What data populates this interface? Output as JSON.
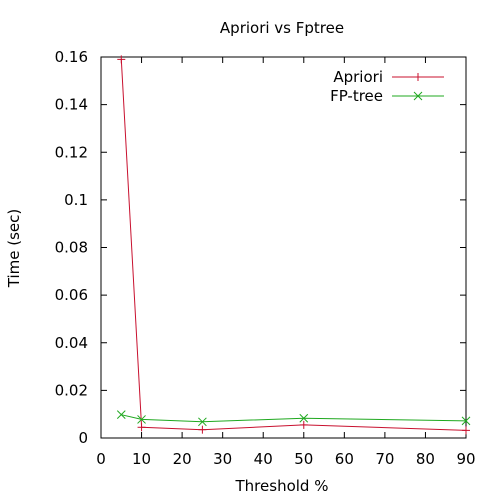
{
  "chart_data": {
    "type": "line",
    "title": "Apriori vs Fptree",
    "xlabel": "Threshold %",
    "ylabel": "Time (sec)",
    "xlim": [
      0,
      90
    ],
    "ylim": [
      0,
      0.16
    ],
    "xticks": [
      0,
      10,
      20,
      30,
      40,
      50,
      60,
      70,
      80,
      90
    ],
    "yticks": [
      0,
      0.02,
      0.04,
      0.06,
      0.08,
      0.1,
      0.12,
      0.14,
      0.16
    ],
    "xtick_labels": [
      "0",
      "10",
      "20",
      "30",
      "40",
      "50",
      "60",
      "70",
      "80",
      "90"
    ],
    "ytick_labels": [
      "0",
      "0.02",
      "0.04",
      "0.06",
      "0.08",
      "0.1",
      "0.12",
      "0.14",
      "0.16"
    ],
    "grid": false,
    "legend_position": "top-right",
    "series": [
      {
        "name": "Apriori",
        "color": "#c8102e",
        "marker": "plus",
        "x": [
          5,
          10,
          25,
          50,
          90
        ],
        "y": [
          0.159,
          0.0045,
          0.0035,
          0.0055,
          0.0032
        ]
      },
      {
        "name": "FP-tree",
        "color": "#1fa81f",
        "marker": "cross",
        "x": [
          5,
          10,
          25,
          50,
          90
        ],
        "y": [
          0.0098,
          0.0078,
          0.0068,
          0.0083,
          0.0072
        ]
      }
    ]
  }
}
